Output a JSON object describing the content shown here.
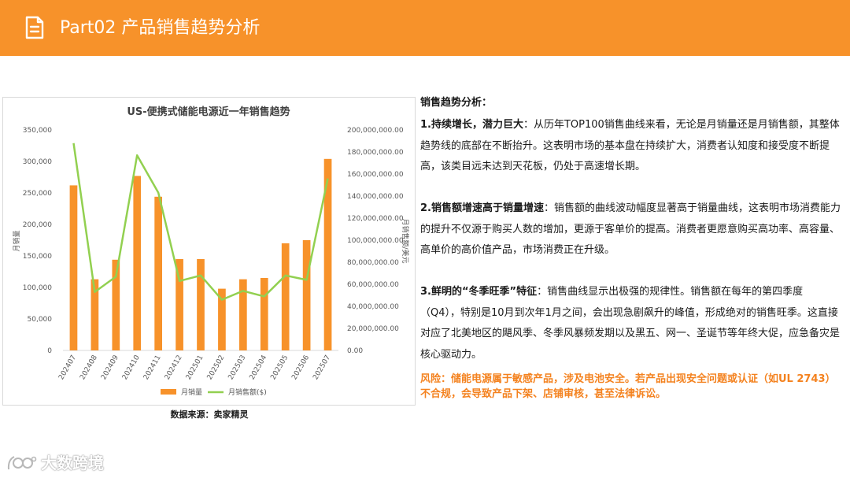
{
  "header": {
    "title": "Part02 产品销售趋势分析",
    "icon": "document-icon",
    "background": "#f7922a"
  },
  "chart_data": {
    "type": "bar",
    "title": "US-便携式储能电源近一年销售趋势",
    "categories": [
      "202407",
      "202408",
      "202409",
      "202410",
      "202411",
      "202412",
      "202501",
      "202502",
      "202503",
      "202504",
      "202505",
      "202506",
      "202507"
    ],
    "ylabel": "月销量",
    "y2label": "月销售额/美元",
    "ylim": [
      0,
      350000
    ],
    "y2lim": [
      0,
      200000000
    ],
    "yticks": [
      "0",
      "50,000",
      "100,000",
      "150,000",
      "200,000",
      "250,000",
      "300,000",
      "350,000"
    ],
    "y2ticks": [
      "0.00",
      "20,000,000.00",
      "40,000,000.00",
      "60,000,000.00",
      "80,000,000.00",
      "100,000,000.00",
      "120,000,000.00",
      "140,000,000.00",
      "160,000,000.00",
      "180,000,000.00",
      "200,000,000.00"
    ],
    "grid": false,
    "legend_position": "bottom",
    "series": [
      {
        "name": "月销量",
        "type": "bar",
        "axis": "left",
        "color": "#f7922a",
        "values": [
          262000,
          113000,
          144000,
          277000,
          244000,
          145000,
          145000,
          98000,
          113000,
          115000,
          170000,
          175000,
          304000
        ]
      },
      {
        "name": "月销售额($)",
        "type": "line",
        "axis": "right",
        "color": "#92d050",
        "values": [
          188000000,
          53000000,
          67000000,
          177000000,
          143000000,
          63000000,
          68000000,
          46000000,
          54000000,
          49000000,
          68000000,
          64000000,
          156000000
        ]
      }
    ]
  },
  "source": "数据来源：卖家精灵",
  "analysis": {
    "title": "销售趋势分析：",
    "points": [
      {
        "heading": "1.持续增长，潜力巨大",
        "body": "：从历年TOP100销售曲线来看，无论是月销量还是月销售额，其整体趋势线的底部在不断抬升。这表明市场的基本盘在持续扩大，消费者认知度和接受度不断提高，该类目远未达到天花板，仍处于高速增长期。"
      },
      {
        "heading": "2.销售额增速高于销量增速",
        "body": "：销售额的曲线波动幅度显著高于销量曲线，这表明市场消费能力的提升不仅源于购买人数的增加，更源于客单价的提高。消费者更愿意购买高功率、高容量、高单价的高价值产品，市场消费正在升级。"
      },
      {
        "heading": "3.鲜明的“冬季旺季”特征",
        "body": "：销售曲线显示出极强的规律性。销售额在每年的第四季度（Q4），特别是10月到次年1月之间，会出现急剧飙升的峰值，形成绝对的销售旺季。这直接对应了北美地区的飓风季、冬季风暴频发期以及黑五、网一、圣诞节等年终大促，应急备灾是核心驱动力。"
      }
    ],
    "risk": "风险：储能电源属于敏感产品，涉及电池安全。若产品出现安全问题或认证（如UL 2743）不合规，会导致产品下架、店铺审核，甚至法律诉讼。",
    "risk_color": "#f4821f"
  },
  "watermark": {
    "text": "大数跨境",
    "icon": "brand-logo-icon"
  }
}
